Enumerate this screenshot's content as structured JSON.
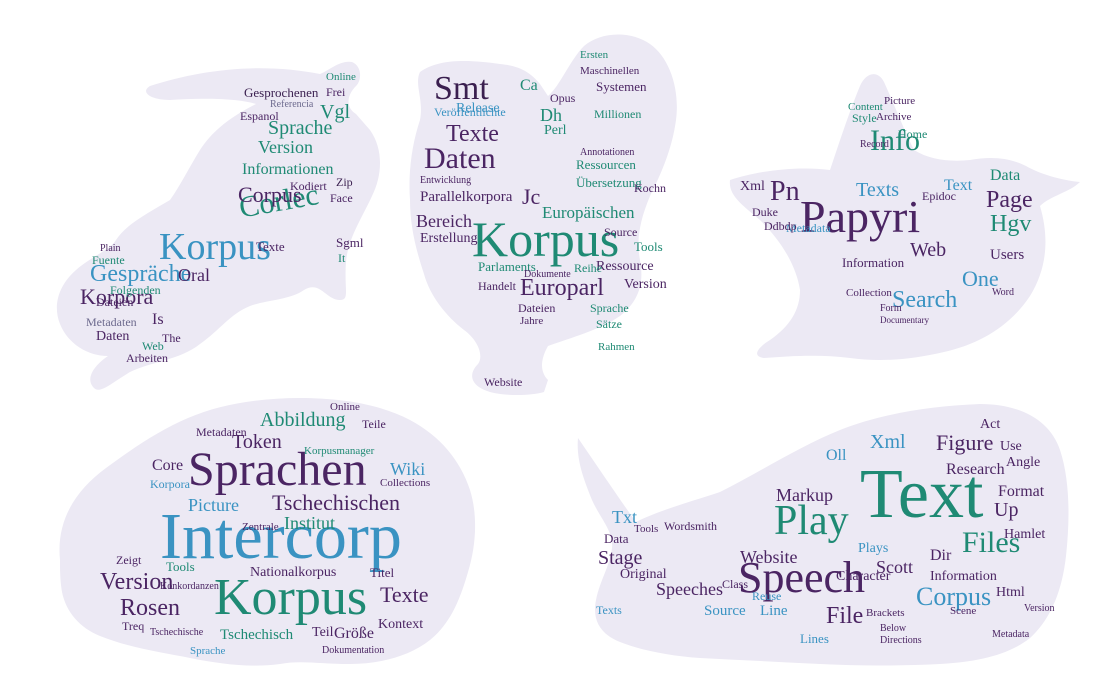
{
  "colors": {
    "purple": "#4b2563",
    "teal": "#1f8a74",
    "blue": "#3a93c2",
    "shape_fill": "#ece9f4"
  },
  "clouds": {
    "lizard": {
      "words": [
        "Korpus",
        "Corlec",
        "Gespräche",
        "Corpus",
        "Korpora",
        "Sprache",
        "Version",
        "Informationen",
        "Daten",
        "Dateien",
        "Metadaten",
        "Oral",
        "Vgl",
        "Gesprochenen",
        "Espanol",
        "Referencia",
        "Kodiert",
        "Zip",
        "Face",
        "Sgml",
        "Texte",
        "Fuente",
        "Plain",
        "Folgenden",
        "Arbeiten",
        "Web",
        "Is",
        "The",
        "Frei",
        "Online",
        "It"
      ]
    },
    "rooster": {
      "words": [
        "Korpus",
        "Europarl",
        "Daten",
        "Smt",
        "Texte",
        "Parallelkorpora",
        "Europäischen",
        "Jc",
        "Bereich",
        "Erstellung",
        "Tools",
        "Release",
        "Veröffentlichte",
        "Millionen",
        "Systemen",
        "Maschinellen",
        "Ersten",
        "Annotationen",
        "Ressourcen",
        "Übersetzung",
        "Kochn",
        "Parlaments",
        "Ressource",
        "Version",
        "Reihe",
        "Dokumente",
        "Handelt",
        "Dateien",
        "Sprache",
        "Source",
        "Website",
        "Jahre",
        "Sätze",
        "Perl",
        "Opus",
        "Dh",
        "Ca",
        "Entwicklung",
        "Rahmen"
      ]
    },
    "bird": {
      "words": [
        "Papyri",
        "Info",
        "Pn",
        "Texts",
        "Page",
        "Hgv",
        "Web",
        "Search",
        "One",
        "Users",
        "Data",
        "Metadata",
        "Xml",
        "Epidoc",
        "Duke",
        "Ddbdp",
        "Information",
        "Collection",
        "Home",
        "Text",
        "Picture",
        "Content",
        "Style",
        "Archive",
        "Word",
        "Form",
        "Record",
        "Documentary"
      ]
    },
    "turtle": {
      "words": [
        "Intercorp",
        "Korpus",
        "Sprachen",
        "Tschechischen",
        "Rosen",
        "Version",
        "Texte",
        "Abbildung",
        "Wiki",
        "Token",
        "Institut",
        "Picture",
        "Core",
        "Korpora",
        "Nationalkorpus",
        "Titel",
        "Kontext",
        "Größe",
        "Teil",
        "Tschechisch",
        "Sprache",
        "Tools",
        "Zeigt",
        "Metadaten",
        "Online",
        "Teile",
        "Korpusmanager",
        "Collections",
        "Zentrale",
        "Konkordanzen",
        "Treq",
        "Tschechische",
        "Dokumentation"
      ]
    },
    "whale": {
      "words": [
        "Text",
        "Speech",
        "Play",
        "Files",
        "Corpus",
        "Figure",
        "Xml",
        "Markup",
        "Stage",
        "Speeches",
        "Scott",
        "Website",
        "Research",
        "Format",
        "Hamlet",
        "Angle",
        "Plays",
        "Character",
        "File",
        "Lines",
        "Line",
        "Source",
        "Original",
        "Data",
        "Txt",
        "Html",
        "Information",
        "Dir",
        "Up",
        "Use",
        "Wordsmith",
        "Tools",
        "Reuse",
        "Class",
        "Texts",
        "Brackets",
        "Scene",
        "Below",
        "Directions",
        "Metadata",
        "Version",
        "Oll",
        "Act"
      ]
    }
  }
}
